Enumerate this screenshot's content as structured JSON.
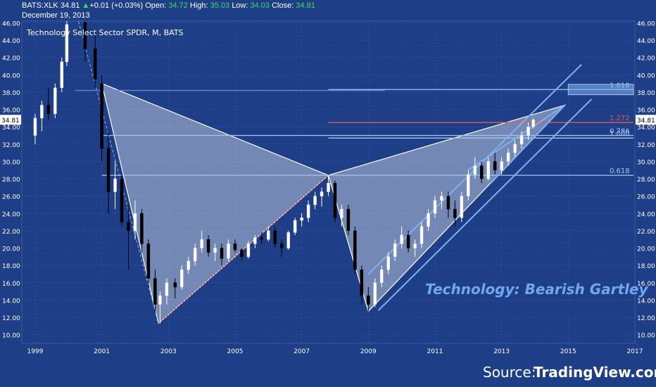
{
  "header": {
    "symbol": "BATS:XLK",
    "last": "34.81",
    "arrow": "▲",
    "change": "+0.01 (+0.03%)",
    "open_label": "Open:",
    "open": "34.72",
    "high_label": "High:",
    "high": "35.03",
    "low_label": "Low:",
    "low": "34.03",
    "close_label": "Close:",
    "close": "34.81",
    "date": "December 19, 2013"
  },
  "chart_title": "Technology Select Sector SPDR, M, BATS",
  "annotation": "Technology: Bearish Gartley",
  "source": {
    "prefix": "Source:",
    "brand": "TradingView.com"
  },
  "colors": {
    "background": "#1e3f87",
    "grid": "#3a5aa0",
    "fib_line": "#a8c4f0",
    "fib_red": "#e05a5a",
    "channel": "#7fb2ee",
    "pattern_fill": "#ffffff",
    "up_candle": "#ffffff",
    "down_candle": "#000000",
    "price_badge": "#ffffff"
  },
  "chart_data": {
    "type": "candlestick",
    "x_ticks": [
      "1999",
      "2001",
      "2003",
      "2005",
      "2007",
      "2009",
      "2011",
      "2013",
      "2015",
      "2017"
    ],
    "y_ticks": [
      "10.00",
      "12.00",
      "14.00",
      "16.00",
      "18.00",
      "20.00",
      "22.00",
      "24.00",
      "26.00",
      "28.00",
      "30.00",
      "32.00",
      "34.00",
      "36.00",
      "38.00",
      "40.00",
      "42.00",
      "44.00",
      "46.00"
    ],
    "ylim": [
      9,
      46.2
    ],
    "xlim": [
      1998.6,
      2017.0
    ],
    "last_price": 34.81,
    "fib_levels": [
      {
        "label": "0.618",
        "value": 28.4,
        "x_from": 2001.0
      },
      {
        "label": "0.786",
        "value": 33.0,
        "x_from": 2001.0
      },
      {
        "label": "1.000",
        "value": 32.7,
        "x_from": 2007.8
      },
      {
        "label": "1.272",
        "value": 34.5,
        "x_from": 2007.8
      },
      {
        "label": "1.618",
        "value": 38.3,
        "x_from": 2007.8
      }
    ],
    "pattern_points": {
      "X": [
        2001.0,
        39.0
      ],
      "A": [
        2002.7,
        11.3
      ],
      "B": [
        2007.8,
        28.4
      ],
      "C": [
        2009.0,
        12.7
      ],
      "D": [
        2014.9,
        36.5
      ]
    },
    "candles": [
      [
        1999.0,
        33.0,
        35.5,
        32.0,
        35.0
      ],
      [
        1999.2,
        35.0,
        37.0,
        33.5,
        36.5
      ],
      [
        1999.4,
        36.5,
        38.5,
        34.8,
        35.5
      ],
      [
        1999.6,
        35.5,
        39.0,
        35.0,
        38.5
      ],
      [
        1999.8,
        38.5,
        42.0,
        38.0,
        41.5
      ],
      [
        1999.95,
        41.5,
        46.2,
        41.0,
        45.8
      ],
      [
        2000.5,
        46.0,
        46.2,
        41.5,
        43.0
      ],
      [
        2000.8,
        43.0,
        45.0,
        38.5,
        39.5
      ],
      [
        2001.0,
        39.0,
        40.0,
        30.0,
        31.5
      ],
      [
        2001.2,
        31.5,
        33.5,
        24.0,
        26.5
      ],
      [
        2001.4,
        26.5,
        30.0,
        24.5,
        28.0
      ],
      [
        2001.6,
        28.0,
        28.5,
        22.5,
        23.0
      ],
      [
        2001.8,
        23.0,
        25.0,
        17.5,
        22.0
      ],
      [
        2002.0,
        22.0,
        25.5,
        21.0,
        24.0
      ],
      [
        2002.2,
        24.0,
        24.5,
        19.5,
        20.5
      ],
      [
        2002.4,
        20.5,
        21.0,
        15.5,
        16.5
      ],
      [
        2002.6,
        16.5,
        17.5,
        12.5,
        13.5
      ],
      [
        2002.75,
        13.5,
        15.0,
        11.3,
        14.5
      ],
      [
        2002.95,
        14.5,
        16.5,
        13.5,
        16.0
      ],
      [
        2003.2,
        16.0,
        16.5,
        14.2,
        15.5
      ],
      [
        2003.4,
        15.5,
        18.0,
        15.2,
        17.5
      ],
      [
        2003.6,
        17.5,
        19.0,
        17.0,
        18.5
      ],
      [
        2003.8,
        18.5,
        20.5,
        18.0,
        20.0
      ],
      [
        2004.0,
        20.0,
        22.0,
        19.5,
        21.0
      ],
      [
        2004.2,
        21.0,
        21.5,
        19.0,
        19.5
      ],
      [
        2004.4,
        19.5,
        20.5,
        18.5,
        20.0
      ],
      [
        2004.6,
        20.0,
        20.5,
        18.0,
        18.8
      ],
      [
        2004.8,
        18.8,
        21.0,
        18.5,
        20.5
      ],
      [
        2005.0,
        20.5,
        21.0,
        19.5,
        19.8
      ],
      [
        2005.2,
        19.8,
        20.0,
        18.5,
        19.0
      ],
      [
        2005.4,
        19.0,
        20.8,
        18.8,
        20.5
      ],
      [
        2005.6,
        20.5,
        21.5,
        20.0,
        21.2
      ],
      [
        2005.8,
        21.2,
        21.8,
        20.5,
        21.0
      ],
      [
        2006.0,
        21.0,
        22.5,
        20.8,
        22.0
      ],
      [
        2006.2,
        22.0,
        22.5,
        20.0,
        20.5
      ],
      [
        2006.4,
        20.5,
        21.0,
        19.0,
        20.0
      ],
      [
        2006.6,
        20.0,
        22.0,
        19.8,
        21.8
      ],
      [
        2006.8,
        21.8,
        23.5,
        21.5,
        23.2
      ],
      [
        2007.0,
        23.2,
        24.0,
        22.5,
        23.5
      ],
      [
        2007.2,
        23.5,
        25.5,
        23.0,
        25.0
      ],
      [
        2007.4,
        25.0,
        26.5,
        24.5,
        26.0
      ],
      [
        2007.6,
        26.0,
        27.0,
        24.8,
        26.5
      ],
      [
        2007.8,
        26.5,
        28.4,
        26.0,
        27.5
      ],
      [
        2008.0,
        27.5,
        27.8,
        23.0,
        23.5
      ],
      [
        2008.2,
        23.5,
        25.0,
        22.5,
        24.5
      ],
      [
        2008.4,
        24.5,
        25.0,
        21.5,
        22.0
      ],
      [
        2008.6,
        22.0,
        22.5,
        17.0,
        17.5
      ],
      [
        2008.8,
        17.5,
        18.0,
        13.5,
        14.5
      ],
      [
        2009.0,
        14.5,
        15.5,
        12.7,
        13.5
      ],
      [
        2009.2,
        13.5,
        16.5,
        13.2,
        16.0
      ],
      [
        2009.4,
        16.0,
        18.0,
        15.5,
        17.5
      ],
      [
        2009.6,
        17.5,
        19.5,
        17.0,
        19.0
      ],
      [
        2009.8,
        19.0,
        21.0,
        18.5,
        20.5
      ],
      [
        2010.0,
        20.5,
        22.5,
        20.0,
        21.5
      ],
      [
        2010.2,
        21.5,
        22.0,
        19.5,
        20.0
      ],
      [
        2010.4,
        20.0,
        21.0,
        19.0,
        20.5
      ],
      [
        2010.6,
        20.5,
        23.0,
        20.0,
        22.5
      ],
      [
        2010.8,
        22.5,
        24.5,
        22.0,
        24.0
      ],
      [
        2011.0,
        24.0,
        26.0,
        23.5,
        25.5
      ],
      [
        2011.2,
        25.5,
        26.5,
        24.5,
        26.0
      ],
      [
        2011.4,
        26.0,
        26.5,
        23.5,
        24.5
      ],
      [
        2011.6,
        24.5,
        25.5,
        22.5,
        23.5
      ],
      [
        2011.8,
        23.5,
        26.5,
        23.0,
        26.0
      ],
      [
        2012.0,
        26.0,
        29.0,
        25.5,
        28.5
      ],
      [
        2012.2,
        28.5,
        30.5,
        28.0,
        29.5
      ],
      [
        2012.4,
        29.5,
        30.0,
        27.5,
        28.0
      ],
      [
        2012.6,
        28.0,
        30.5,
        27.8,
        30.0
      ],
      [
        2012.8,
        30.0,
        31.0,
        28.5,
        29.0
      ],
      [
        2013.0,
        29.0,
        30.5,
        28.5,
        30.0
      ],
      [
        2013.2,
        30.0,
        31.5,
        29.5,
        31.0
      ],
      [
        2013.4,
        31.0,
        32.5,
        30.5,
        32.0
      ],
      [
        2013.6,
        32.0,
        33.5,
        31.5,
        33.0
      ],
      [
        2013.8,
        33.0,
        34.5,
        32.5,
        34.0
      ],
      [
        2013.95,
        34.0,
        35.0,
        33.8,
        34.8
      ]
    ]
  }
}
